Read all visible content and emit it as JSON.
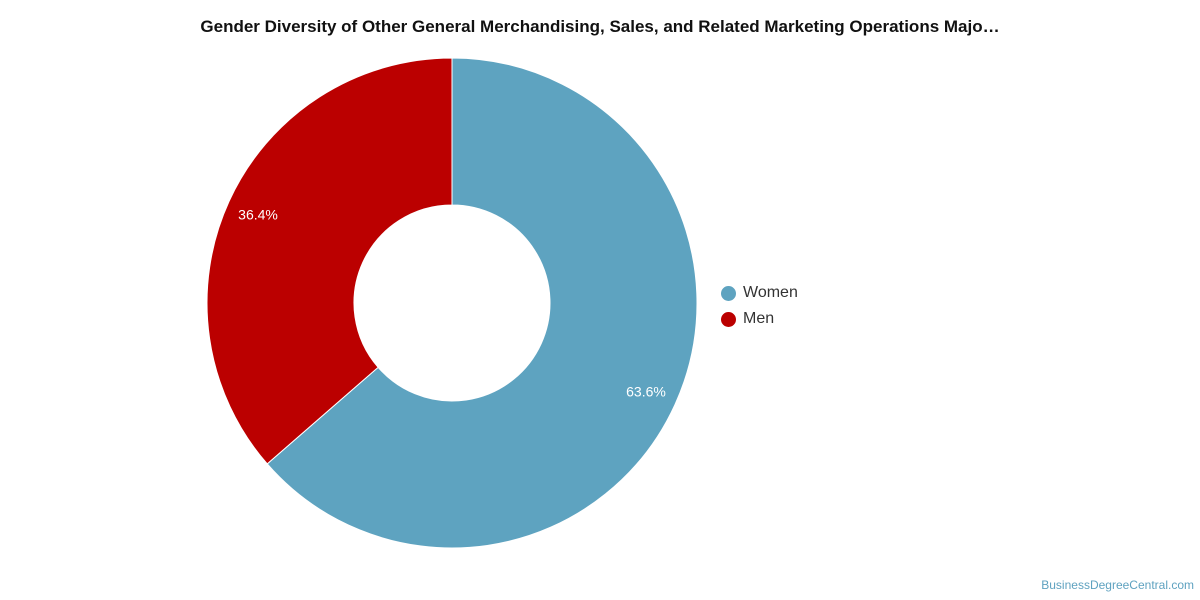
{
  "chart_data": {
    "type": "pie",
    "title": "Gender Diversity of Other General Merchandising, Sales, and Related Marketing Operations Majo…",
    "categories": [
      "Women",
      "Men"
    ],
    "values": [
      63.6,
      36.4
    ],
    "data_labels": [
      "63.6%",
      "36.4%"
    ],
    "colors": [
      "#5ea3c0",
      "#bb0000"
    ],
    "donut": true,
    "legend_position": "right"
  },
  "watermark": "BusinessDegreeCentral.com"
}
